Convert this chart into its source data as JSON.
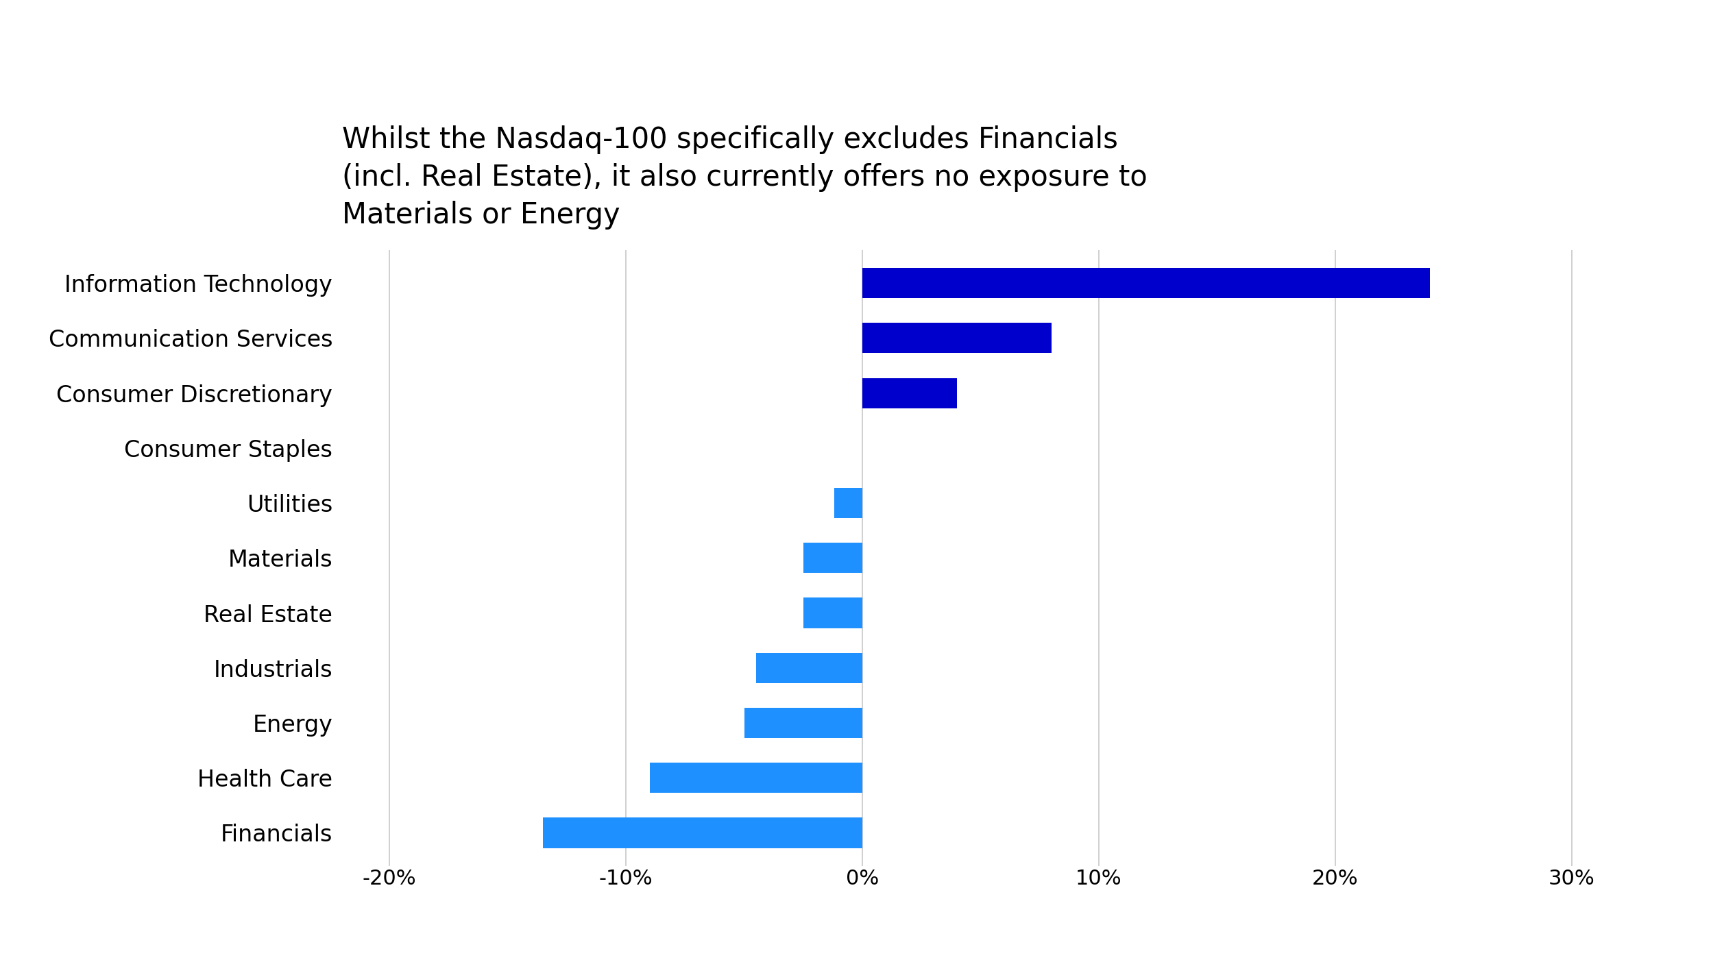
{
  "title_line1": "Whilst the Nasdaq-100 specifically excludes Financials",
  "title_line2": "(incl. Real Estate), it also currently offers no exposure to",
  "title_line3": "Materials or Energy",
  "categories": [
    "Information Technology",
    "Communication Services",
    "Consumer Discretionary",
    "Consumer Staples",
    "Utilities",
    "Materials",
    "Real Estate",
    "Industrials",
    "Energy",
    "Health Care",
    "Financials"
  ],
  "values": [
    24.0,
    8.0,
    4.0,
    0.0,
    -1.2,
    -2.5,
    -2.5,
    -4.5,
    -5.0,
    -9.0,
    -13.5
  ],
  "bar_color_positive": "#0000CC",
  "bar_color_negative": "#1E90FF",
  "xlim": [
    -22,
    33
  ],
  "xticks": [
    -20,
    -10,
    0,
    10,
    20,
    30
  ],
  "xtick_labels": [
    "-20%",
    "-10%",
    "0%",
    "10%",
    "20%",
    "30%"
  ],
  "background_color": "#FFFFFF",
  "grid_color": "#C8C8C8",
  "title_fontsize": 30,
  "tick_fontsize": 22,
  "label_fontsize": 24,
  "bar_height": 0.55
}
